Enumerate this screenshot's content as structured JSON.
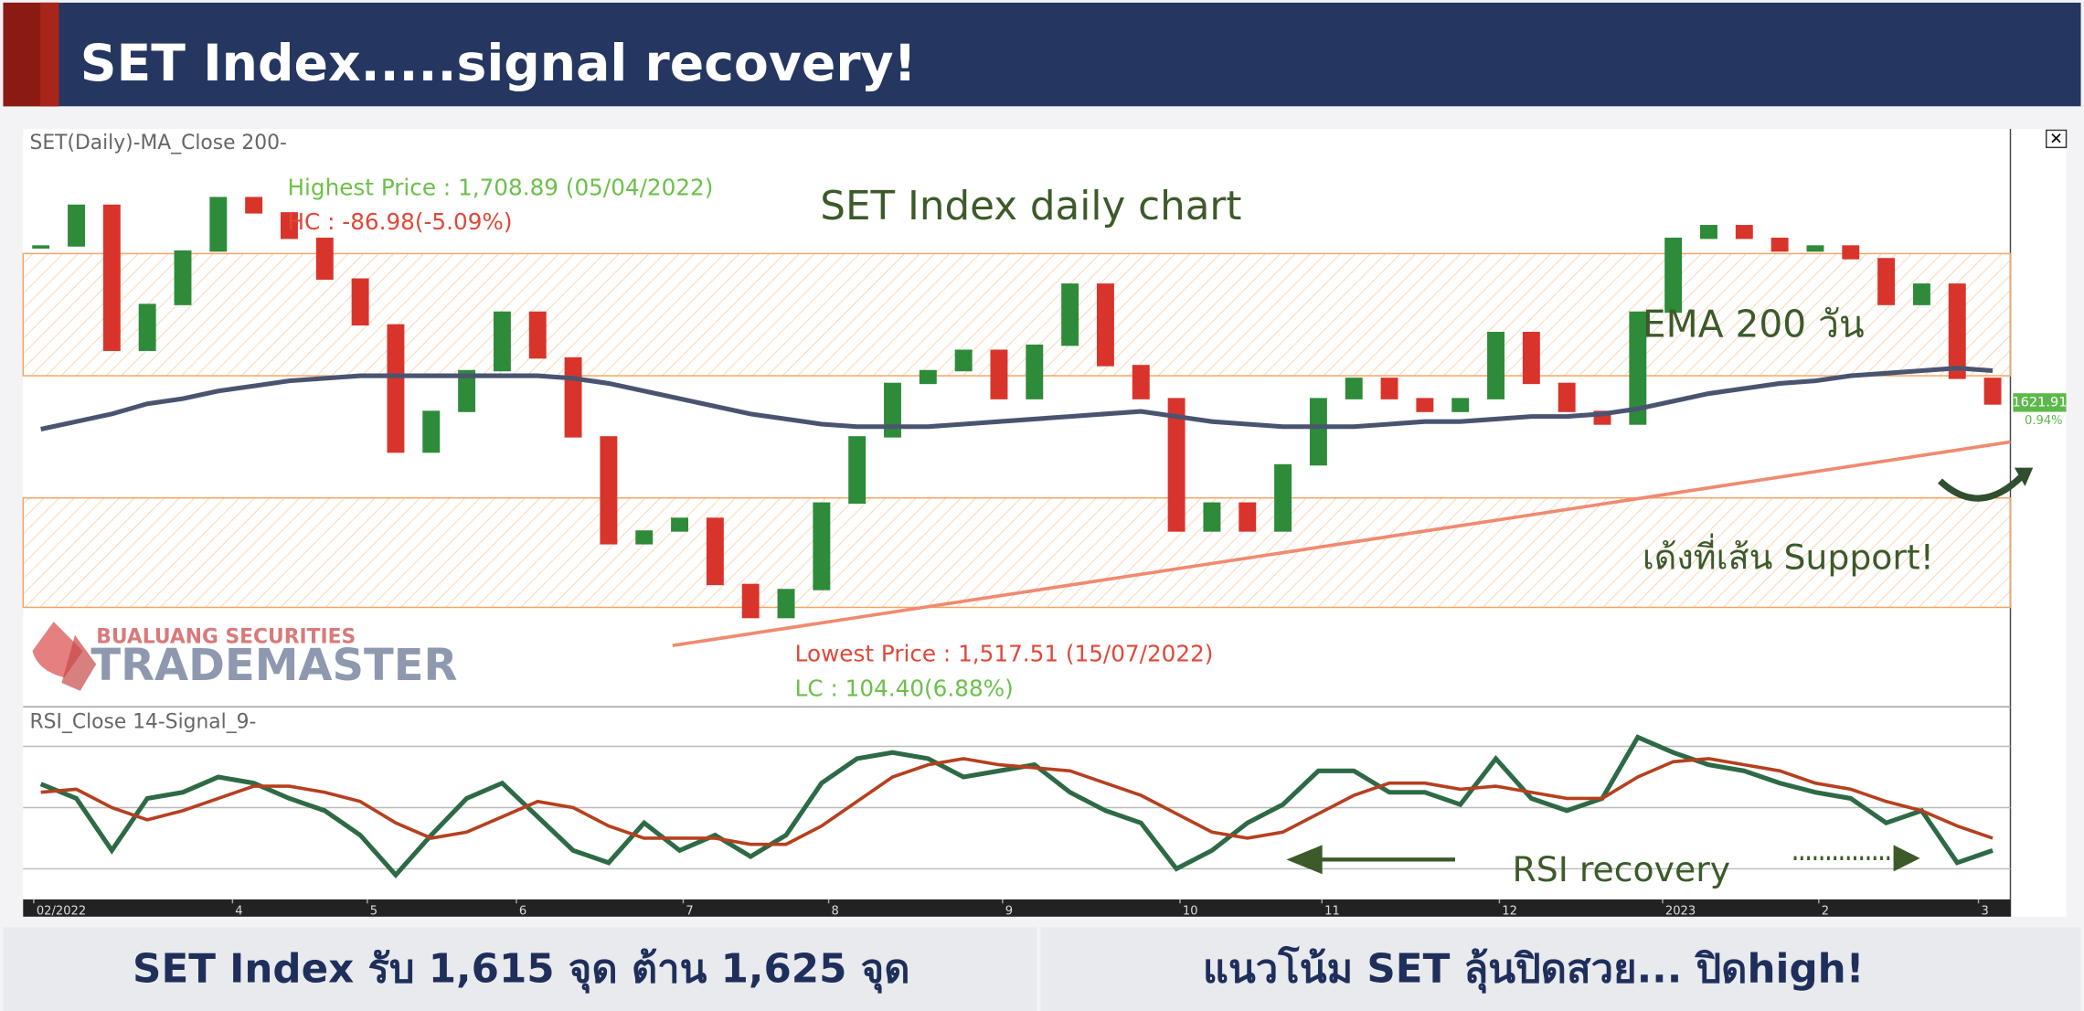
{
  "header": {
    "title": "SET Index.....signal recovery!"
  },
  "chart_data": [
    {
      "type": "candlestick",
      "panel_title": "SET(Daily)-MA_Close 200-",
      "title": "SET Index daily chart",
      "values": [
        1684,
        1700,
        1643,
        1661,
        1682,
        1703,
        1697,
        1687,
        1671,
        1653,
        1603,
        1619,
        1635,
        1658,
        1640,
        1609,
        1567,
        1572,
        1577,
        1551,
        1538,
        1549,
        1583,
        1609,
        1630,
        1635,
        1643,
        1624,
        1645,
        1669,
        1637,
        1624,
        1572,
        1583,
        1572,
        1598,
        1624,
        1632,
        1624,
        1619,
        1624,
        1650,
        1630,
        1619,
        1614,
        1658,
        1687,
        1692,
        1687,
        1682,
        1684,
        1679,
        1661,
        1669,
        1632,
        1621.91
      ],
      "up_color": "#2e8b3a",
      "down_color": "#d9342b",
      "ema": {
        "name": "EMA 200 วัน",
        "color": "#4a5470",
        "values": [
          1612,
          1615,
          1618,
          1622,
          1624,
          1627,
          1629,
          1631,
          1632,
          1633,
          1633,
          1633,
          1633,
          1633,
          1633,
          1632,
          1630,
          1627,
          1624,
          1621,
          1618,
          1616,
          1614,
          1613,
          1613,
          1613,
          1614,
          1615,
          1616,
          1617,
          1618,
          1619,
          1617,
          1615,
          1614,
          1613,
          1613,
          1613,
          1614,
          1615,
          1615,
          1616,
          1617,
          1617,
          1618,
          1620,
          1623,
          1626,
          1628,
          1630,
          1631,
          1633,
          1634,
          1635,
          1636,
          1635
        ]
      },
      "zones": [
        [
          1633,
          1681
        ],
        [
          1542,
          1585
        ]
      ],
      "zone_color": "#f4a460",
      "support_line": {
        "x": [
          18.3,
          56
        ],
        "y": [
          1527,
          1607
        ],
        "color": "#f08a70"
      },
      "ylim": [
        1504,
        1730
      ],
      "xlim": [
        0,
        56
      ],
      "xticks": [
        {
          "value": 0.3,
          "label": "02/2022"
        },
        {
          "value": 5.9,
          "label": "4"
        },
        {
          "value": 9.7,
          "label": "5"
        },
        {
          "value": 13.9,
          "label": "6"
        },
        {
          "value": 18.6,
          "label": "7"
        },
        {
          "value": 22.7,
          "label": "8"
        },
        {
          "value": 27.6,
          "label": "9"
        },
        {
          "value": 32.6,
          "label": "10"
        },
        {
          "value": 36.6,
          "label": "11"
        },
        {
          "value": 41.6,
          "label": "12"
        },
        {
          "value": 46.2,
          "label": "2023"
        },
        {
          "value": 50.6,
          "label": "2"
        },
        {
          "value": 55.1,
          "label": "3"
        }
      ],
      "annotations": {
        "highest": "Highest Price : 1,708.89 (05/04/2022)",
        "hc": "HC : -86.98(-5.09%)",
        "lowest": "Lowest Price : 1,517.51 (15/07/2022)",
        "lc": "LC : 104.40(6.88%)",
        "support": "เด้งที่เส้น Support!",
        "price_tag": "1621.91",
        "change_tag": "0.94%",
        "brand_top": "BUALUANG SECURITIES",
        "brand_bottom": "TRADEMASTER"
      }
    },
    {
      "type": "line",
      "panel_title": "RSI_Close 14-Signal_9-",
      "annotation": "RSI recovery",
      "ylim": [
        20,
        76
      ],
      "yticks": [
        30,
        50,
        70
      ],
      "series": [
        {
          "color": "#2d6a45",
          "values": [
            57.7,
            53,
            36,
            53,
            55,
            60,
            58,
            53,
            49,
            41,
            28,
            41,
            53,
            58,
            47,
            36,
            32,
            45,
            36,
            41,
            34,
            41,
            58,
            66,
            68,
            66,
            60,
            62,
            64,
            55,
            49,
            45,
            30,
            36,
            45,
            51,
            62,
            62,
            55,
            55,
            51,
            66,
            53,
            49,
            53,
            73,
            68,
            64,
            62,
            58,
            55,
            53,
            45,
            49,
            32,
            36
          ]
        },
        {
          "color": "#b5401f",
          "values": [
            55,
            56,
            50,
            46,
            49,
            53,
            57,
            57,
            55,
            52,
            45,
            40,
            42,
            47,
            52,
            50,
            44,
            40,
            40,
            40,
            38,
            38,
            44,
            52,
            60,
            64,
            66,
            64,
            63,
            62,
            58,
            54,
            48,
            42,
            40,
            42,
            48,
            54,
            58,
            58,
            56,
            57,
            55,
            53,
            53,
            60,
            65,
            66,
            64,
            62,
            58,
            56,
            52,
            49,
            44,
            40
          ]
        }
      ]
    }
  ],
  "footer": {
    "left": "SET Index รับ 1,615 จุด ต้าน 1,625 จุด",
    "right": "แนวโน้ม SET ลุ้นปิดสวย... ปิดhigh!"
  }
}
